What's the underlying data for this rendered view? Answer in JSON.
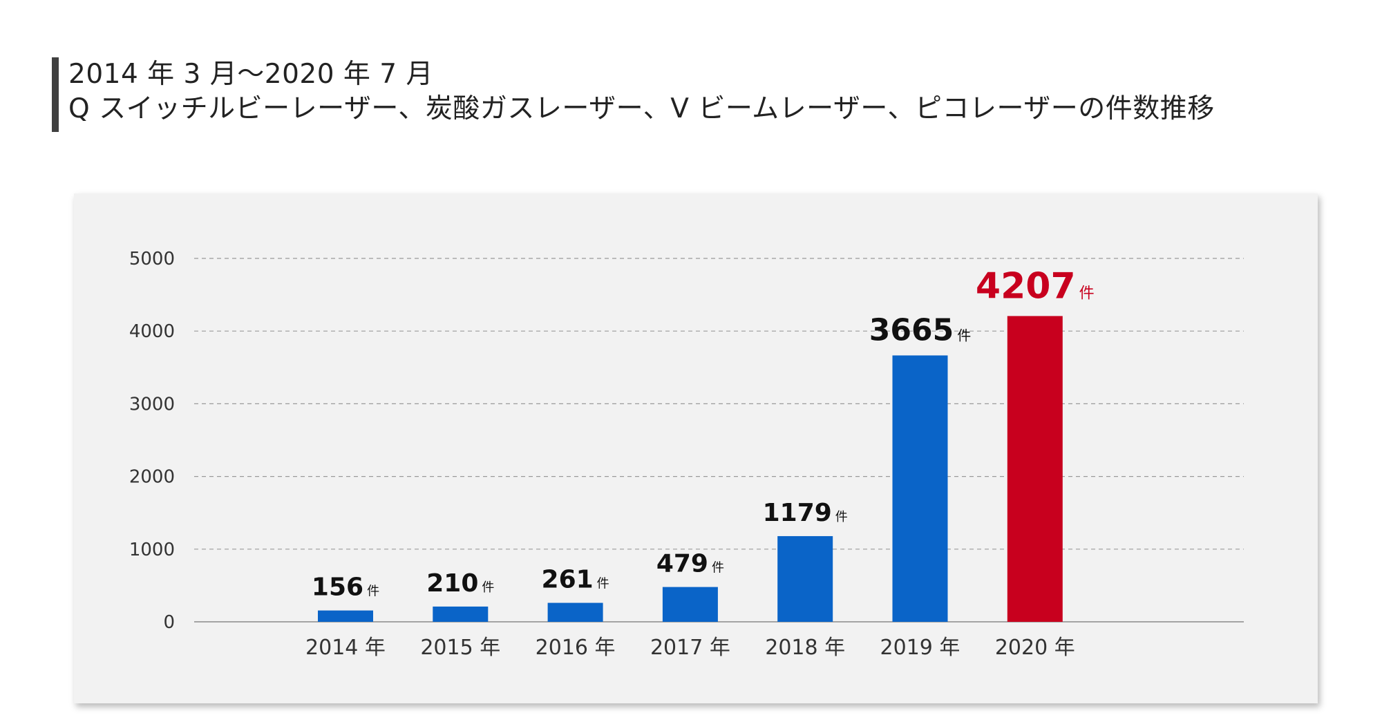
{
  "title": {
    "line1": "2014 年 3 月〜2020 年 7 月",
    "line2": "Q スイッチルビーレーザー、炭酸ガスレーザー、V ビームレーザー、ピコレーザーの件数推移"
  },
  "chart_data": {
    "type": "bar",
    "categories": [
      "2014 年",
      "2015 年",
      "2016 年",
      "2017 年",
      "2018 年",
      "2019 年",
      "2020 年"
    ],
    "values": [
      156,
      210,
      261,
      479,
      1179,
      3665,
      4207
    ],
    "value_labels": [
      "156",
      "210",
      "261",
      "479",
      "1179",
      "3665",
      "4207"
    ],
    "unit": "件",
    "ylim": [
      0,
      5000
    ],
    "yticks": [
      0,
      1000,
      2000,
      3000,
      4000,
      5000
    ],
    "ytick_labels": [
      "0",
      "1000",
      "2000",
      "3000",
      "4000",
      "5000"
    ],
    "grid": true,
    "colors": {
      "default": "#0a64c8",
      "highlight": "#c8001e",
      "label_default": "#111111",
      "label_highlight": "#c8001e"
    },
    "highlight_index": 6
  }
}
